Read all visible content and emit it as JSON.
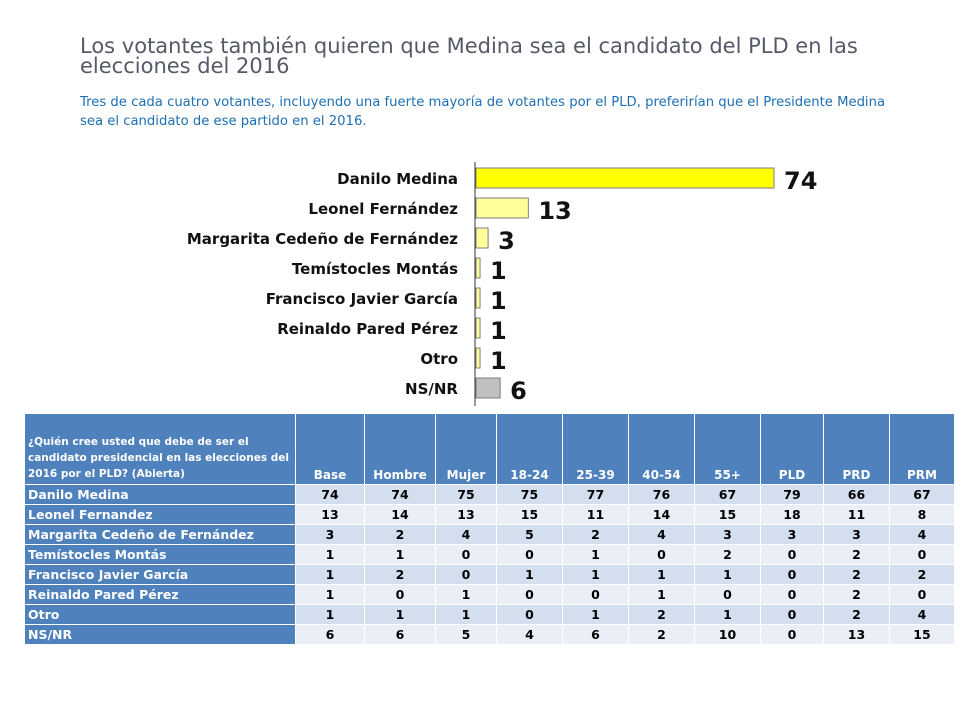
{
  "title": "Los votantes también quieren que Medina sea el candidato del PLD en las elecciones del 2016",
  "subtitle": "Tres de cada cuatro votantes, incluyendo una fuerte mayoría de votantes por el PLD, preferirían que el Presidente Medina sea el candidato de ese partido en el 2016.",
  "chart_data": {
    "type": "bar",
    "orientation": "horizontal",
    "categories": [
      "Danilo Medina",
      "Leonel Fernández",
      "Margarita Cedeño de Fernández",
      "Temístocles Montás",
      "Francisco Javier García",
      "Reinaldo Pared Pérez",
      "Otro",
      "NS/NR"
    ],
    "values": [
      74,
      13,
      3,
      1,
      1,
      1,
      1,
      6
    ],
    "bar_colors": [
      "#ffff00",
      "#ffff99",
      "#ffff99",
      "#ffff99",
      "#ffff99",
      "#ffff99",
      "#ffff99",
      "#bfbfbf"
    ],
    "xlim": [
      0,
      74
    ],
    "grid": false
  },
  "table": {
    "question": "¿Quién cree usted que debe de ser el candidato presidencial en las elecciones del 2016 por el PLD? (Abierta)",
    "columns": [
      "Base",
      "Hombre",
      "Mujer",
      "18-24",
      "25-39",
      "40-54",
      "55+",
      "PLD",
      "PRD",
      "PRM"
    ],
    "rows": [
      {
        "label": "Danilo Medina",
        "values": [
          "74",
          "74",
          "75",
          "75",
          "77",
          "76",
          "67",
          "79",
          "66",
          "67"
        ]
      },
      {
        "label": "Leonel Fernandez",
        "values": [
          "13",
          "14",
          "13",
          "15",
          "11",
          "14",
          "15",
          "18",
          "11",
          "8"
        ]
      },
      {
        "label": "Margarita Cedeño de Fernández",
        "values": [
          "3",
          "2",
          "4",
          "5",
          "2",
          "4",
          "3",
          "3",
          "3",
          "4"
        ]
      },
      {
        "label": "Temístocles Montás",
        "values": [
          "1",
          "1",
          "0",
          "0",
          "1",
          "0",
          "2",
          "0",
          "2",
          "0"
        ]
      },
      {
        "label": "Francisco Javier García",
        "values": [
          "1",
          "2",
          "0",
          "1",
          "1",
          "1",
          "1",
          "0",
          "2",
          "2"
        ]
      },
      {
        "label": "Reinaldo Pared Pérez",
        "values": [
          "1",
          "0",
          "1",
          "0",
          "0",
          "1",
          "0",
          "0",
          "2",
          "0"
        ]
      },
      {
        "label": "Otro",
        "values": [
          "1",
          "1",
          "1",
          "0",
          "1",
          "2",
          "1",
          "0",
          "2",
          "4"
        ]
      },
      {
        "label": "NS/NR",
        "values": [
          "6",
          "6",
          "5",
          "4",
          "6",
          "2",
          "10",
          "0",
          "13",
          "15"
        ]
      }
    ]
  }
}
